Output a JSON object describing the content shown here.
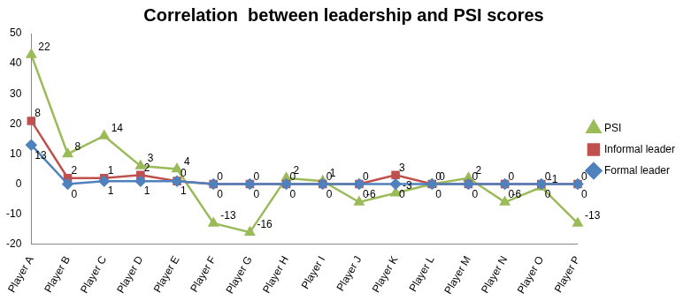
{
  "chart_data": {
    "type": "line",
    "title": "Correlation  between leadership and PSI scores",
    "categories": [
      "Player A",
      "Player B",
      "Player C",
      "Player D",
      "Player E",
      "Player F",
      "Player G",
      "Player H",
      "Player I",
      "Player J",
      "Player K",
      "Player L",
      "Player M",
      "Player N",
      "Player O",
      "Player P"
    ],
    "series": [
      {
        "name": "Formal leader",
        "color": "#4f81bd",
        "marker": "diamond",
        "values": [
          13,
          0,
          1,
          1,
          1,
          0,
          0,
          0,
          0,
          0,
          0,
          0,
          0,
          0,
          0,
          0
        ]
      },
      {
        "name": "Informal leader",
        "color": "#c0504d",
        "marker": "square",
        "values": [
          8,
          2,
          1,
          2,
          0,
          0,
          0,
          0,
          0,
          0,
          3,
          0,
          0,
          0,
          0,
          0
        ]
      },
      {
        "name": "PSI",
        "color": "#9bbb59",
        "marker": "triangle",
        "values": [
          22,
          8,
          14,
          3,
          4,
          -13,
          -16,
          2,
          1,
          -6,
          -3,
          0,
          2,
          -6,
          -1,
          -13
        ]
      }
    ],
    "stacked": true,
    "data_labels": true,
    "ylim": [
      -20,
      50
    ],
    "yticks": [
      -20,
      -10,
      0,
      10,
      20,
      30,
      40,
      50
    ],
    "grid": false,
    "legend": "right"
  }
}
